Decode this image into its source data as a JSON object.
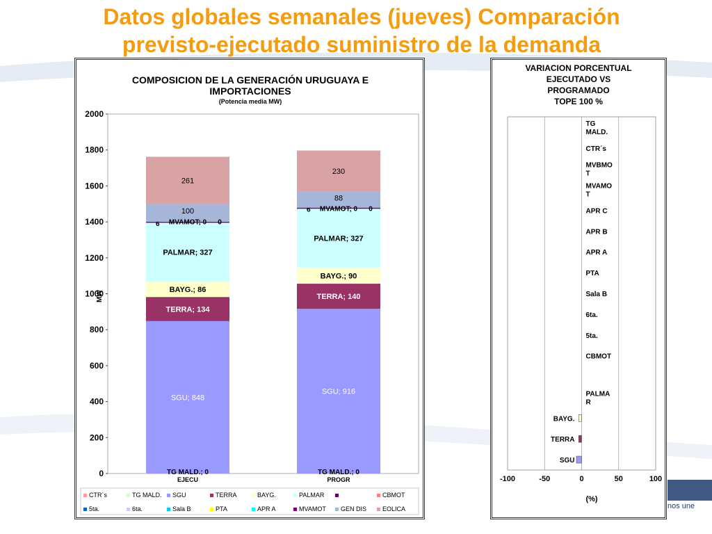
{
  "slide": {
    "title_line1": "Datos globales semanales  (jueves) Comparación",
    "title_line2": "previsto-ejecutado suministro de la demanda",
    "logo_text": "nos une"
  },
  "chart_data": [
    {
      "type": "bar",
      "stacked": true,
      "title": "COMPOSICION DE LA GENERACIÓN URUGUAYA E IMPORTACIONES",
      "title_line1": "COMPOSICION DE LA GENERACIÓN URUGUAYA E",
      "title_line2": "IMPORTACIONES",
      "subtitle": "(Potencia media MW)",
      "ylabel": "MW",
      "ylim": [
        0,
        2000
      ],
      "yticks": [
        "0",
        "200",
        "400",
        "600",
        "800",
        "1000",
        "1200",
        "1400",
        "1600",
        "1800",
        "2000"
      ],
      "categories": [
        "EJECU",
        "PROGR"
      ],
      "series": [
        {
          "name": "SGU",
          "color": "#9999ff",
          "values": [
            848,
            916
          ],
          "labels": [
            "SGU; 848",
            "SGU; 916"
          ]
        },
        {
          "name": "TERRA",
          "color": "#993366",
          "values": [
            134,
            140
          ],
          "labels": [
            "TERRA; 134",
            "TERRA; 140"
          ]
        },
        {
          "name": "BAYG.",
          "color": "#ffffcc",
          "values": [
            86,
            90
          ],
          "labels": [
            "BAYG.; 86",
            "BAYG.; 90"
          ]
        },
        {
          "name": "PALMAR",
          "color": "#ccffff",
          "values": [
            327,
            327
          ],
          "labels": [
            "PALMAR; 327",
            "PALMAR; 327"
          ]
        },
        {
          "name": "MVAMOT",
          "color": "#7f007f",
          "values": [
            6,
            6
          ],
          "labels": [
            "6",
            "6"
          ]
        },
        {
          "name": "GEN DIS",
          "color": "#a6b6d8",
          "values": [
            100,
            88
          ],
          "labels": [
            "100",
            "88"
          ]
        },
        {
          "name": "EOLICA",
          "color": "#d9a3a6",
          "values": [
            261,
            230
          ],
          "labels": [
            "261",
            "230"
          ]
        }
      ],
      "inline_labels": [
        {
          "category": "EJECU",
          "text": "MVAMOT; 0",
          "at": 1402
        },
        {
          "category": "EJECU",
          "text": "0",
          "at": 1402
        },
        {
          "category": "PROGR",
          "text": "MVAMOT; 0",
          "at": 1475
        },
        {
          "category": "PROGR",
          "text": "0",
          "at": 1475
        },
        {
          "category": "EJECU",
          "text": "TG MALD.; 0",
          "at": 0
        },
        {
          "category": "PROGR",
          "text": "TG MALD.; 0",
          "at": 0
        }
      ],
      "legend": {
        "placement": "bottom",
        "row1": [
          {
            "name": "CTR´s",
            "color": "#ff9999"
          },
          {
            "name": "TG MALD.",
            "color": "#ccffcc"
          },
          {
            "name": "SGU",
            "color": "#9999ff"
          },
          {
            "name": "TERRA",
            "color": "#993366"
          },
          {
            "name": "BAYG.",
            "color": "#ffffcc"
          },
          {
            "name": "PALMAR",
            "color": "#ccffff"
          },
          {
            "name": "",
            "color": "#660066"
          },
          {
            "name": "CBMOT",
            "color": "#ff8080"
          }
        ],
        "row2": [
          {
            "name": "5ta.",
            "color": "#0066cc"
          },
          {
            "name": "6ta.",
            "color": "#ccccff"
          },
          {
            "name": "Sala B",
            "color": "#00ccff"
          },
          {
            "name": "PTA",
            "color": "#ffff00"
          },
          {
            "name": "APR A",
            "color": "#00ffff"
          },
          {
            "name": "MVAMOT",
            "color": "#7f007f"
          },
          {
            "name": "GEN DIS",
            "color": "#a6b6d8"
          },
          {
            "name": "EOLICA",
            "color": "#d9a3a6"
          }
        ]
      }
    },
    {
      "type": "bar",
      "orientation": "horizontal",
      "title_lines": [
        "VARIACION PORCENTUAL",
        "EJECUTADO VS",
        "PROGRAMADO",
        "TOPE 100 %"
      ],
      "xlabel": "(%)",
      "xlim": [
        -100,
        100
      ],
      "xticks": [
        "-100",
        "-50",
        "0",
        "50",
        "100"
      ],
      "categories": [
        {
          "lines": [
            "TG",
            "MALD."
          ]
        },
        {
          "lines": [
            "CTR´s"
          ]
        },
        {
          "lines": [
            "MVBMO",
            "T"
          ]
        },
        {
          "lines": [
            "MVAMO",
            "T"
          ]
        },
        {
          "lines": [
            "APR C"
          ]
        },
        {
          "lines": [
            "APR B"
          ]
        },
        {
          "lines": [
            "APR A"
          ]
        },
        {
          "lines": [
            "PTA"
          ]
        },
        {
          "lines": [
            "Sala B"
          ]
        },
        {
          "lines": [
            "6ta."
          ]
        },
        {
          "lines": [
            "5ta."
          ]
        },
        {
          "lines": [
            "CBMOT"
          ]
        },
        {
          "lines": [
            ""
          ]
        },
        {
          "lines": [
            "PALMA",
            "R"
          ]
        },
        {
          "lines": [
            "BAYG."
          ]
        },
        {
          "lines": [
            "TERRA"
          ]
        },
        {
          "lines": [
            "SGU"
          ]
        }
      ],
      "values": [
        0,
        0,
        0,
        0,
        0,
        0,
        0,
        0,
        0,
        0,
        0,
        0,
        0,
        0,
        -4,
        -4,
        -7
      ],
      "colors": [
        "#ccffcc",
        "#ff9999",
        "#660066",
        "#7f007f",
        "#ccffcc",
        "#ccccff",
        "#00ffff",
        "#ffff00",
        "#00ccff",
        "#ccccff",
        "#0066cc",
        "#ff8080",
        "#ffffff",
        "#ccffff",
        "#ffffcc",
        "#993366",
        "#9999ff"
      ]
    }
  ]
}
